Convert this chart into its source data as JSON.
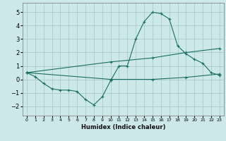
{
  "xlabel": "Humidex (Indice chaleur)",
  "ylabel": "",
  "xlim": [
    -0.5,
    23.5
  ],
  "ylim": [
    -2.7,
    5.7
  ],
  "yticks": [
    -2,
    -1,
    0,
    1,
    2,
    3,
    4,
    5
  ],
  "xticks": [
    0,
    1,
    2,
    3,
    4,
    5,
    6,
    7,
    8,
    9,
    10,
    11,
    12,
    13,
    14,
    15,
    16,
    17,
    18,
    19,
    20,
    21,
    22,
    23
  ],
  "bg_color": "#cce8e8",
  "grid_color": "#aacccc",
  "line_color": "#1a6e64",
  "line1_x": [
    0,
    1,
    2,
    3,
    4,
    5,
    6,
    7,
    8,
    9,
    10,
    11,
    12,
    13,
    14,
    15,
    16,
    17,
    18,
    19,
    20,
    21,
    22,
    23
  ],
  "line1_y": [
    0.5,
    0.2,
    -0.3,
    -0.7,
    -0.8,
    -0.8,
    -0.9,
    -1.5,
    -1.9,
    -1.3,
    -0.1,
    1.0,
    1.0,
    3.0,
    4.3,
    5.0,
    4.9,
    4.5,
    2.5,
    1.9,
    1.5,
    1.2,
    0.5,
    0.3
  ],
  "line2_x": [
    0,
    10,
    15,
    19,
    23
  ],
  "line2_y": [
    0.5,
    0.0,
    0.0,
    0.15,
    0.4
  ],
  "line3_x": [
    0,
    10,
    15,
    19,
    23
  ],
  "line3_y": [
    0.5,
    1.3,
    1.6,
    2.0,
    2.3
  ]
}
